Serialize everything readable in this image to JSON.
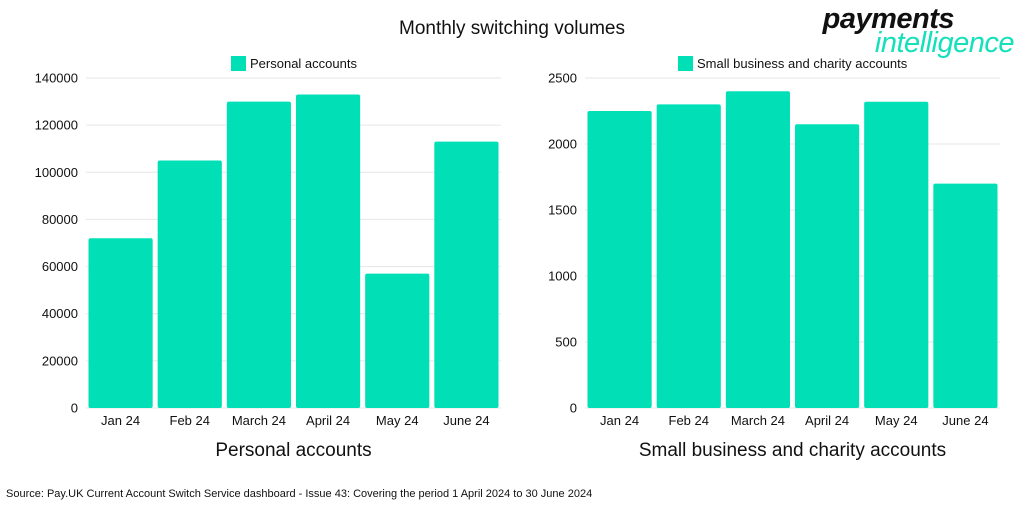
{
  "title": "Monthly switching volumes",
  "logo": {
    "line1": "payments",
    "line2": "intelligence"
  },
  "source": "Source: Pay.UK Current Account Switch Service dashboard - Issue 43: Covering the period 1 April 2024 to 30 June 2024",
  "colors": {
    "bar": "#00dfb6",
    "grid": "#e6e6e6",
    "brand_accent": "#14e0bc"
  },
  "chart_data": [
    {
      "type": "bar",
      "title": "Personal accounts",
      "legend": "Personal accounts",
      "legend_position": "top",
      "categories": [
        "Jan 24",
        "Feb 24",
        "March 24",
        "April 24",
        "May 24",
        "June 24"
      ],
      "series": [
        {
          "name": "Personal accounts",
          "values": [
            72000,
            105000,
            130000,
            133000,
            57000,
            113000
          ]
        }
      ],
      "ylim": [
        0,
        140000
      ],
      "yticks": [
        0,
        20000,
        40000,
        60000,
        80000,
        100000,
        120000,
        140000
      ],
      "grid": true
    },
    {
      "type": "bar",
      "title": "Small business and charity accounts",
      "legend": "Small business and charity accounts",
      "legend_position": "top",
      "categories": [
        "Jan 24",
        "Feb 24",
        "March 24",
        "April 24",
        "May 24",
        "June 24"
      ],
      "series": [
        {
          "name": "Small business and charity accounts",
          "values": [
            2250,
            2300,
            2400,
            2150,
            2320,
            1700
          ]
        }
      ],
      "ylim": [
        0,
        2500
      ],
      "yticks": [
        0,
        500,
        1000,
        1500,
        2000,
        2500
      ],
      "grid": true
    }
  ]
}
